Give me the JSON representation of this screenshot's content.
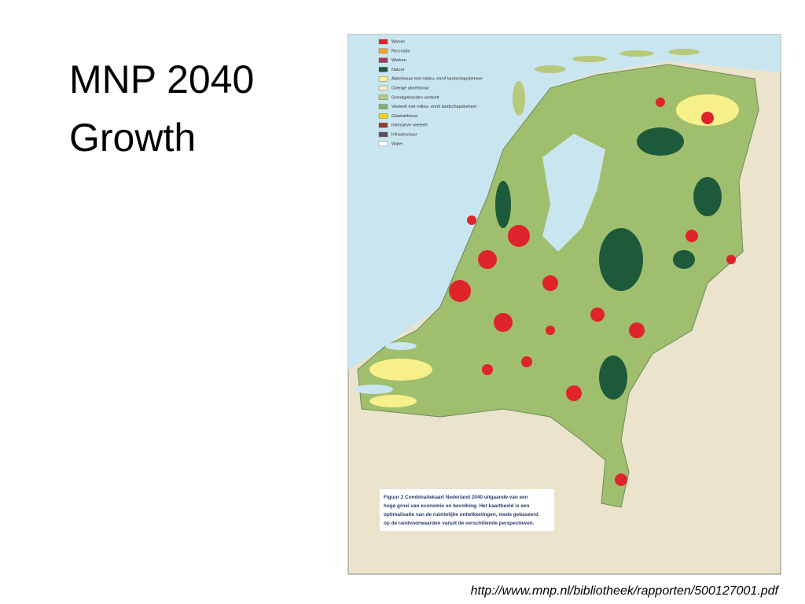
{
  "title": {
    "lines": [
      "MNP 2040",
      "Growth"
    ]
  },
  "legend": [
    {
      "label": "Wonen",
      "color": "#e0242b"
    },
    {
      "label": "Recreatie",
      "color": "#f5a81c"
    },
    {
      "label": "Werken",
      "color": "#a33b5e"
    },
    {
      "label": "Natuur",
      "color": "#1d5a3a"
    },
    {
      "label": "Akkerbouw met milieu- en/of landschapsbeheer",
      "color": "#f7f08a"
    },
    {
      "label": "Overige akkerbouw",
      "color": "#f3ecc6"
    },
    {
      "label": "Grondgebonden veeteelt",
      "color": "#b8c97a"
    },
    {
      "label": "Veeteelt met milieu- en/of landschapsbeheer",
      "color": "#7db46c"
    },
    {
      "label": "Glastuinbouw",
      "color": "#f2d500"
    },
    {
      "label": "Intensieve veeteelt",
      "color": "#9c3a2a"
    },
    {
      "label": "Infrastructuur",
      "color": "#5a4e5a"
    },
    {
      "label": "Water",
      "color": "#ffffff"
    }
  ],
  "caption": {
    "lines": [
      "Figuur 2   Combinatiekaart Nederland 2040 uitgaande van een",
      "hoge groei van economie en bevolking. Het kaartbeeld is een",
      "optimalisatie van de ruimtelijke ontwikkelingen, mede gebaseerd",
      "op de randvoorwaarden vanuit de verschillende perspectieven."
    ]
  },
  "source": "http://www.mnp.nl/bibliotheek/rapporten/500127001.pdf"
}
